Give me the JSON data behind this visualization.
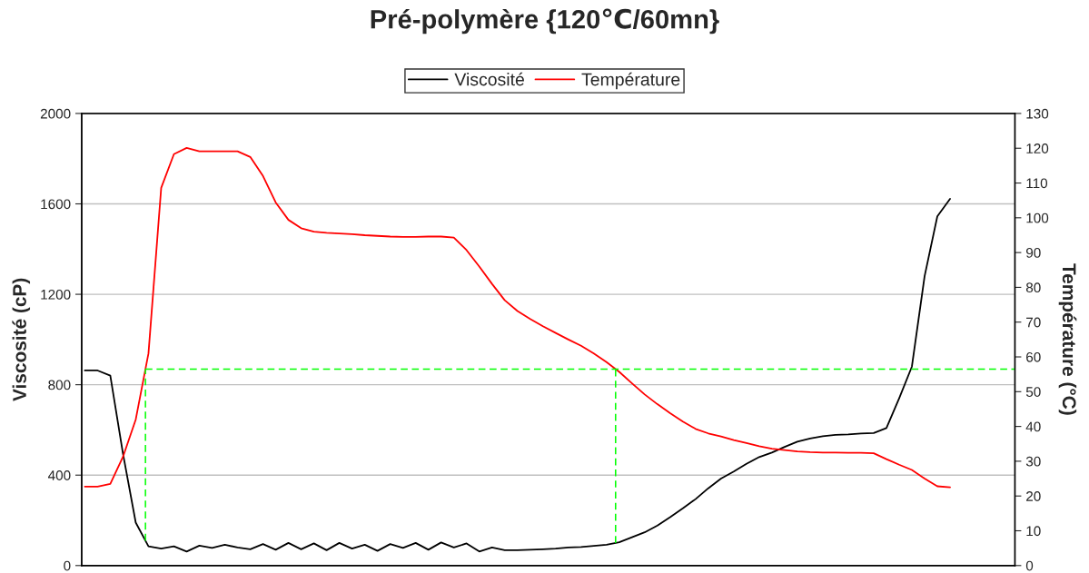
{
  "chart_data": {
    "type": "line",
    "title": "Pré-polymère {120℃/60mn}",
    "ylabel": "Viscosité (cP)",
    "y2label": "Température (°C)",
    "categories": [
      null,
      null,
      null,
      null,
      null,
      null,
      null,
      null,
      null,
      null,
      null,
      null,
      null,
      null,
      null,
      null,
      null,
      null,
      null,
      null,
      null,
      null,
      null,
      null,
      null,
      null,
      null,
      null,
      null,
      null,
      null,
      null,
      null,
      null,
      null,
      null,
      null,
      null,
      null,
      null,
      null,
      null,
      null,
      null,
      null,
      null,
      null,
      null,
      null,
      null,
      null,
      null,
      null,
      null,
      null,
      null,
      null,
      null,
      null,
      null,
      null,
      null,
      null,
      null,
      null,
      null,
      null,
      null,
      null
    ],
    "series": [
      {
        "name": "Viscosité",
        "color": "#000000",
        "values": [
          863,
          863,
          840,
          494,
          190,
          85,
          75,
          85,
          62,
          88,
          78,
          92,
          80,
          72,
          95,
          70,
          100,
          72,
          98,
          68,
          100,
          75,
          92,
          65,
          95,
          78,
          100,
          70,
          102,
          80,
          98,
          62,
          80,
          68,
          68,
          70,
          72,
          75,
          80,
          82,
          87,
          92,
          103,
          125,
          147,
          177,
          214,
          253,
          294,
          342,
          385,
          416,
          450,
          480,
          500,
          525,
          548,
          562,
          572,
          578,
          580,
          584,
          586,
          608,
          740,
          880,
          1280,
          1545,
          1622
        ]
      },
      {
        "name": "Température",
        "color": "#ff0000",
        "axis": "y2",
        "values": [
          22.7,
          22.7,
          23.5,
          31.3,
          42,
          61,
          108.6,
          118.3,
          120.1,
          119.1,
          119.1,
          119.1,
          119.1,
          117.5,
          112,
          104.4,
          99.4,
          97,
          96,
          95.7,
          95.5,
          95.3,
          95,
          94.8,
          94.6,
          94.5,
          94.5,
          94.6,
          94.6,
          94.3,
          90.7,
          86,
          81,
          76.3,
          73.2,
          70.9,
          68.8,
          66.9,
          65,
          63.2,
          61,
          58.5,
          55.7,
          52.4,
          49.2,
          46.4,
          43.8,
          41.4,
          39.3,
          38,
          37.1,
          36.1,
          35.2,
          34.3,
          33.6,
          33.2,
          32.8,
          32.6,
          32.5,
          32.5,
          32.4,
          32.4,
          32.3,
          30.6,
          29,
          27.5,
          25,
          22.8,
          22.5
        ]
      }
    ],
    "ylim": [
      0,
      2000
    ],
    "yticks": [
      0,
      400,
      800,
      1200,
      1600,
      2000
    ],
    "y2lim": [
      0,
      130
    ],
    "y2ticks": [
      0,
      10,
      20,
      30,
      40,
      50,
      60,
      70,
      80,
      90,
      100,
      110,
      120,
      130
    ],
    "ref_lines": [
      {
        "axis": "y2",
        "value": 56.5,
        "color": "#00ff00",
        "line_style": "dashed"
      }
    ],
    "grid": "y",
    "legend": "top",
    "tick_labels": "y",
    "marker": "none",
    "line_style": "solid"
  }
}
